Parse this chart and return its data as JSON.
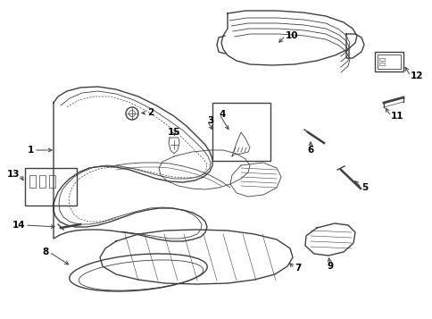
{
  "bg_color": "#ffffff",
  "line_color": "#404040",
  "label_color": "#000000",
  "fig_w": 4.85,
  "fig_h": 3.57,
  "dpi": 100
}
